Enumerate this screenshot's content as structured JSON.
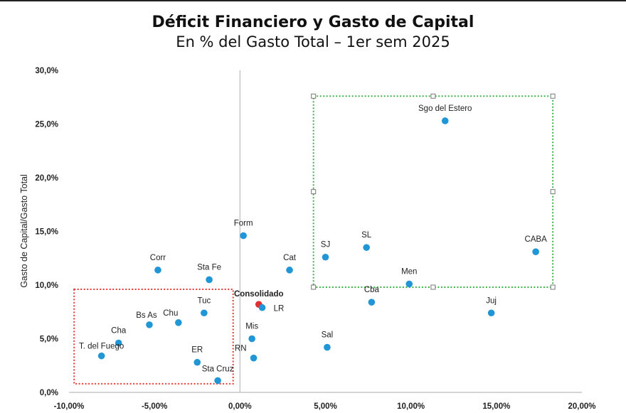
{
  "header": {
    "title": "Déficit Financiero y Gasto de Capital",
    "subtitle": "En % del Gasto Total – 1er sem 2025"
  },
  "colors": {
    "point": "#2196d6",
    "highlight_point": "#e03030",
    "green_box": "#3db24a",
    "red_box": "#e53935",
    "axis": "#bbbbbb"
  },
  "chart_data": {
    "type": "scatter",
    "title": "Déficit Financiero y Gasto de Capital",
    "subtitle": "En % del Gasto Total – 1er sem 2025",
    "xlabel": "",
    "ylabel": "Gasto de Capital/Gasto Total",
    "xlim": [
      -10,
      20
    ],
    "ylim": [
      0,
      30
    ],
    "x_ticks": [
      "-10,00%",
      "-5,00%",
      "0,00%",
      "5,00%",
      "10,00%",
      "15,00%",
      "20,00%"
    ],
    "y_ticks": [
      "0,0%",
      "5,0%",
      "10,0%",
      "15,0%",
      "20,0%",
      "25,0%",
      "30,0%"
    ],
    "grid": false,
    "points": [
      {
        "label": "Sgo del Estero",
        "x": 12.0,
        "y": 25.3
      },
      {
        "label": "CABA",
        "x": 17.3,
        "y": 13.1
      },
      {
        "label": "SL",
        "x": 7.4,
        "y": 13.5
      },
      {
        "label": "SJ",
        "x": 5.0,
        "y": 12.6
      },
      {
        "label": "Men",
        "x": 9.9,
        "y": 10.1
      },
      {
        "label": "Cba",
        "x": 7.7,
        "y": 8.4
      },
      {
        "label": "Juj",
        "x": 14.7,
        "y": 7.4
      },
      {
        "label": "Sal",
        "x": 5.1,
        "y": 4.2
      },
      {
        "label": "Form",
        "x": 0.2,
        "y": 14.6
      },
      {
        "label": "Cat",
        "x": 2.9,
        "y": 11.4
      },
      {
        "label": "Consolidado",
        "x": 1.1,
        "y": 8.2,
        "highlight": true
      },
      {
        "label": "LR",
        "x": 1.3,
        "y": 7.9
      },
      {
        "label": "Mis",
        "x": 0.7,
        "y": 5.0
      },
      {
        "label": "RN",
        "x": 0.8,
        "y": 3.2
      },
      {
        "label": "Corr",
        "x": -4.8,
        "y": 11.4
      },
      {
        "label": "Sta Fe",
        "x": -1.8,
        "y": 10.5
      },
      {
        "label": "Tuc",
        "x": -2.1,
        "y": 7.4
      },
      {
        "label": "Bs As",
        "x": -5.3,
        "y": 6.3
      },
      {
        "label": "Chu",
        "x": -3.6,
        "y": 6.5
      },
      {
        "label": "Cha",
        "x": -7.1,
        "y": 4.6
      },
      {
        "label": "T. del Fuego",
        "x": -8.1,
        "y": 3.4
      },
      {
        "label": "ER",
        "x": -2.5,
        "y": 2.8
      },
      {
        "label": "Sta Cruz",
        "x": -1.3,
        "y": 1.1
      }
    ],
    "regions": [
      {
        "name": "superavit-alto-capital",
        "style": "green-dotted",
        "x": [
          4.3,
          18.3
        ],
        "y": [
          9.8,
          27.6
        ]
      },
      {
        "name": "deficit-bajo-capital",
        "style": "red-dotted",
        "x": [
          -9.7,
          -0.4
        ],
        "y": [
          0.8,
          9.6
        ]
      }
    ]
  }
}
